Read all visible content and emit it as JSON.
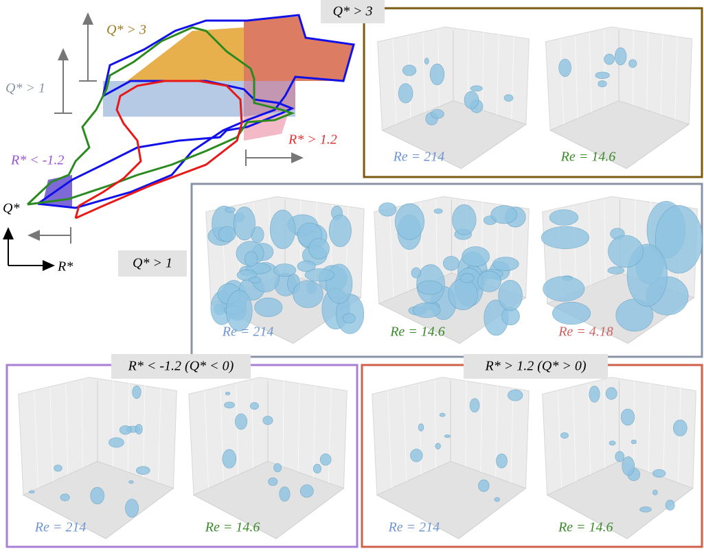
{
  "diagram": {
    "annotations": {
      "q3": "Q* > 3",
      "q1": "Q* > 1",
      "r_neg": "R* < -1.2",
      "r_pos": "R* > 1.2"
    },
    "axes": {
      "y": "Q*",
      "x": "R*"
    }
  },
  "panels": [
    {
      "label": "Q* > 3",
      "cubes": [
        "Re = 214",
        "Re = 14.6"
      ]
    },
    {
      "label": "Q* > 1",
      "cubes": [
        "Re = 214",
        "Re = 14.6",
        "Re = 4.18"
      ]
    },
    {
      "label": "R* < -1.2 (Q* < 0)",
      "cubes": [
        "Re = 214",
        "Re = 14.6"
      ]
    },
    {
      "label": "R* > 1.2 (Q* > 0)",
      "cubes": [
        "Re = 214",
        "Re = 14.6"
      ]
    }
  ]
}
